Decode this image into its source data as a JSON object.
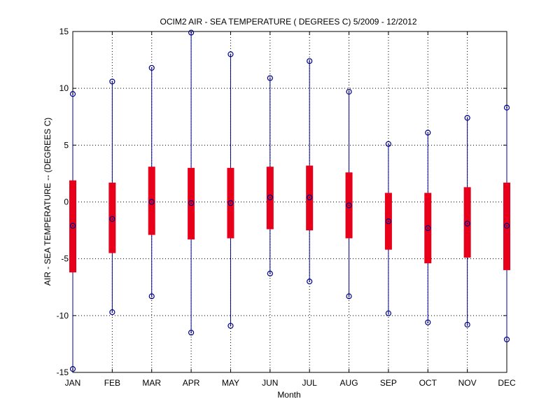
{
  "chart_data": {
    "type": "box",
    "title": "OCIM2  AIR - SEA TEMPERATURE ( DEGREES C) 5/2009 - 12/2012",
    "xlabel": "Month",
    "ylabel": "AIR - SEA TEMPERATURE -- (DEGREES C)",
    "categories": [
      "JAN",
      "FEB",
      "MAR",
      "APR",
      "MAY",
      "JUN",
      "JUL",
      "AUG",
      "SEP",
      "OCT",
      "NOV",
      "DEC"
    ],
    "ylim": [
      -15,
      15
    ],
    "yticks": [
      -15,
      -10,
      -5,
      0,
      5,
      10,
      15
    ],
    "grid": true,
    "series": [
      {
        "min": [
          -14.7,
          -9.7,
          -8.3,
          -11.5,
          -10.9,
          -6.3,
          -7.0,
          -8.3,
          -9.8,
          -10.6,
          -10.8,
          -12.1
        ],
        "q1": [
          -6.2,
          -4.5,
          -2.9,
          -3.3,
          -3.2,
          -2.4,
          -2.5,
          -3.2,
          -4.2,
          -5.4,
          -4.9,
          -6.0
        ],
        "median": [
          -2.1,
          -1.5,
          0.0,
          -0.1,
          -0.1,
          0.4,
          0.4,
          -0.3,
          -1.7,
          -2.3,
          -1.9,
          -2.1
        ],
        "q3": [
          1.9,
          1.7,
          3.1,
          3.0,
          3.0,
          3.1,
          3.2,
          2.6,
          0.8,
          0.8,
          1.3,
          1.7
        ],
        "max": [
          9.5,
          10.6,
          11.8,
          14.9,
          13.0,
          10.9,
          12.4,
          9.7,
          5.1,
          6.1,
          7.4,
          8.3
        ]
      }
    ],
    "colors": {
      "whisker": "#00008b",
      "box": "#e8001a",
      "marker": "#00008b",
      "grid": "#000000",
      "axis": "#000000"
    }
  }
}
